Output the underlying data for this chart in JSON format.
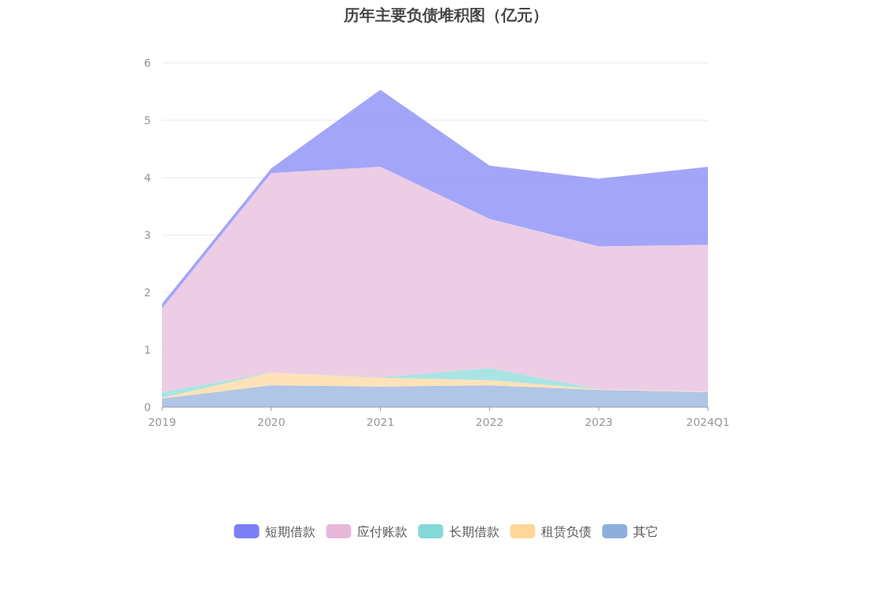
{
  "chart_data": {
    "type": "area",
    "stacked": true,
    "title": "历年主要负债堆积图（亿元）",
    "categories": [
      "2019",
      "2020",
      "2021",
      "2022",
      "2023",
      "2024Q1"
    ],
    "series": [
      {
        "name": "其它",
        "color": "#8eaedc",
        "values": [
          0.15,
          0.38,
          0.36,
          0.38,
          0.3,
          0.26
        ]
      },
      {
        "name": "租赁负债",
        "color": "#ffd699",
        "values": [
          0.01,
          0.22,
          0.15,
          0.09,
          0.01,
          0.01
        ]
      },
      {
        "name": "长期借款",
        "color": "#85d8d8",
        "values": [
          0.1,
          0,
          0.01,
          0.21,
          0,
          0
        ]
      },
      {
        "name": "应付账款",
        "color": "#e6b8da",
        "values": [
          1.46,
          3.48,
          3.67,
          2.6,
          2.49,
          2.56
        ]
      },
      {
        "name": "短期借款",
        "color": "#7c7ff7",
        "values": [
          0.08,
          0.08,
          1.34,
          0.93,
          1.18,
          1.36
        ]
      }
    ],
    "ylim": [
      0,
      6
    ],
    "yticks": [
      0,
      1,
      2,
      3,
      4,
      5,
      6
    ],
    "grid": "y",
    "legend": "bottom"
  }
}
